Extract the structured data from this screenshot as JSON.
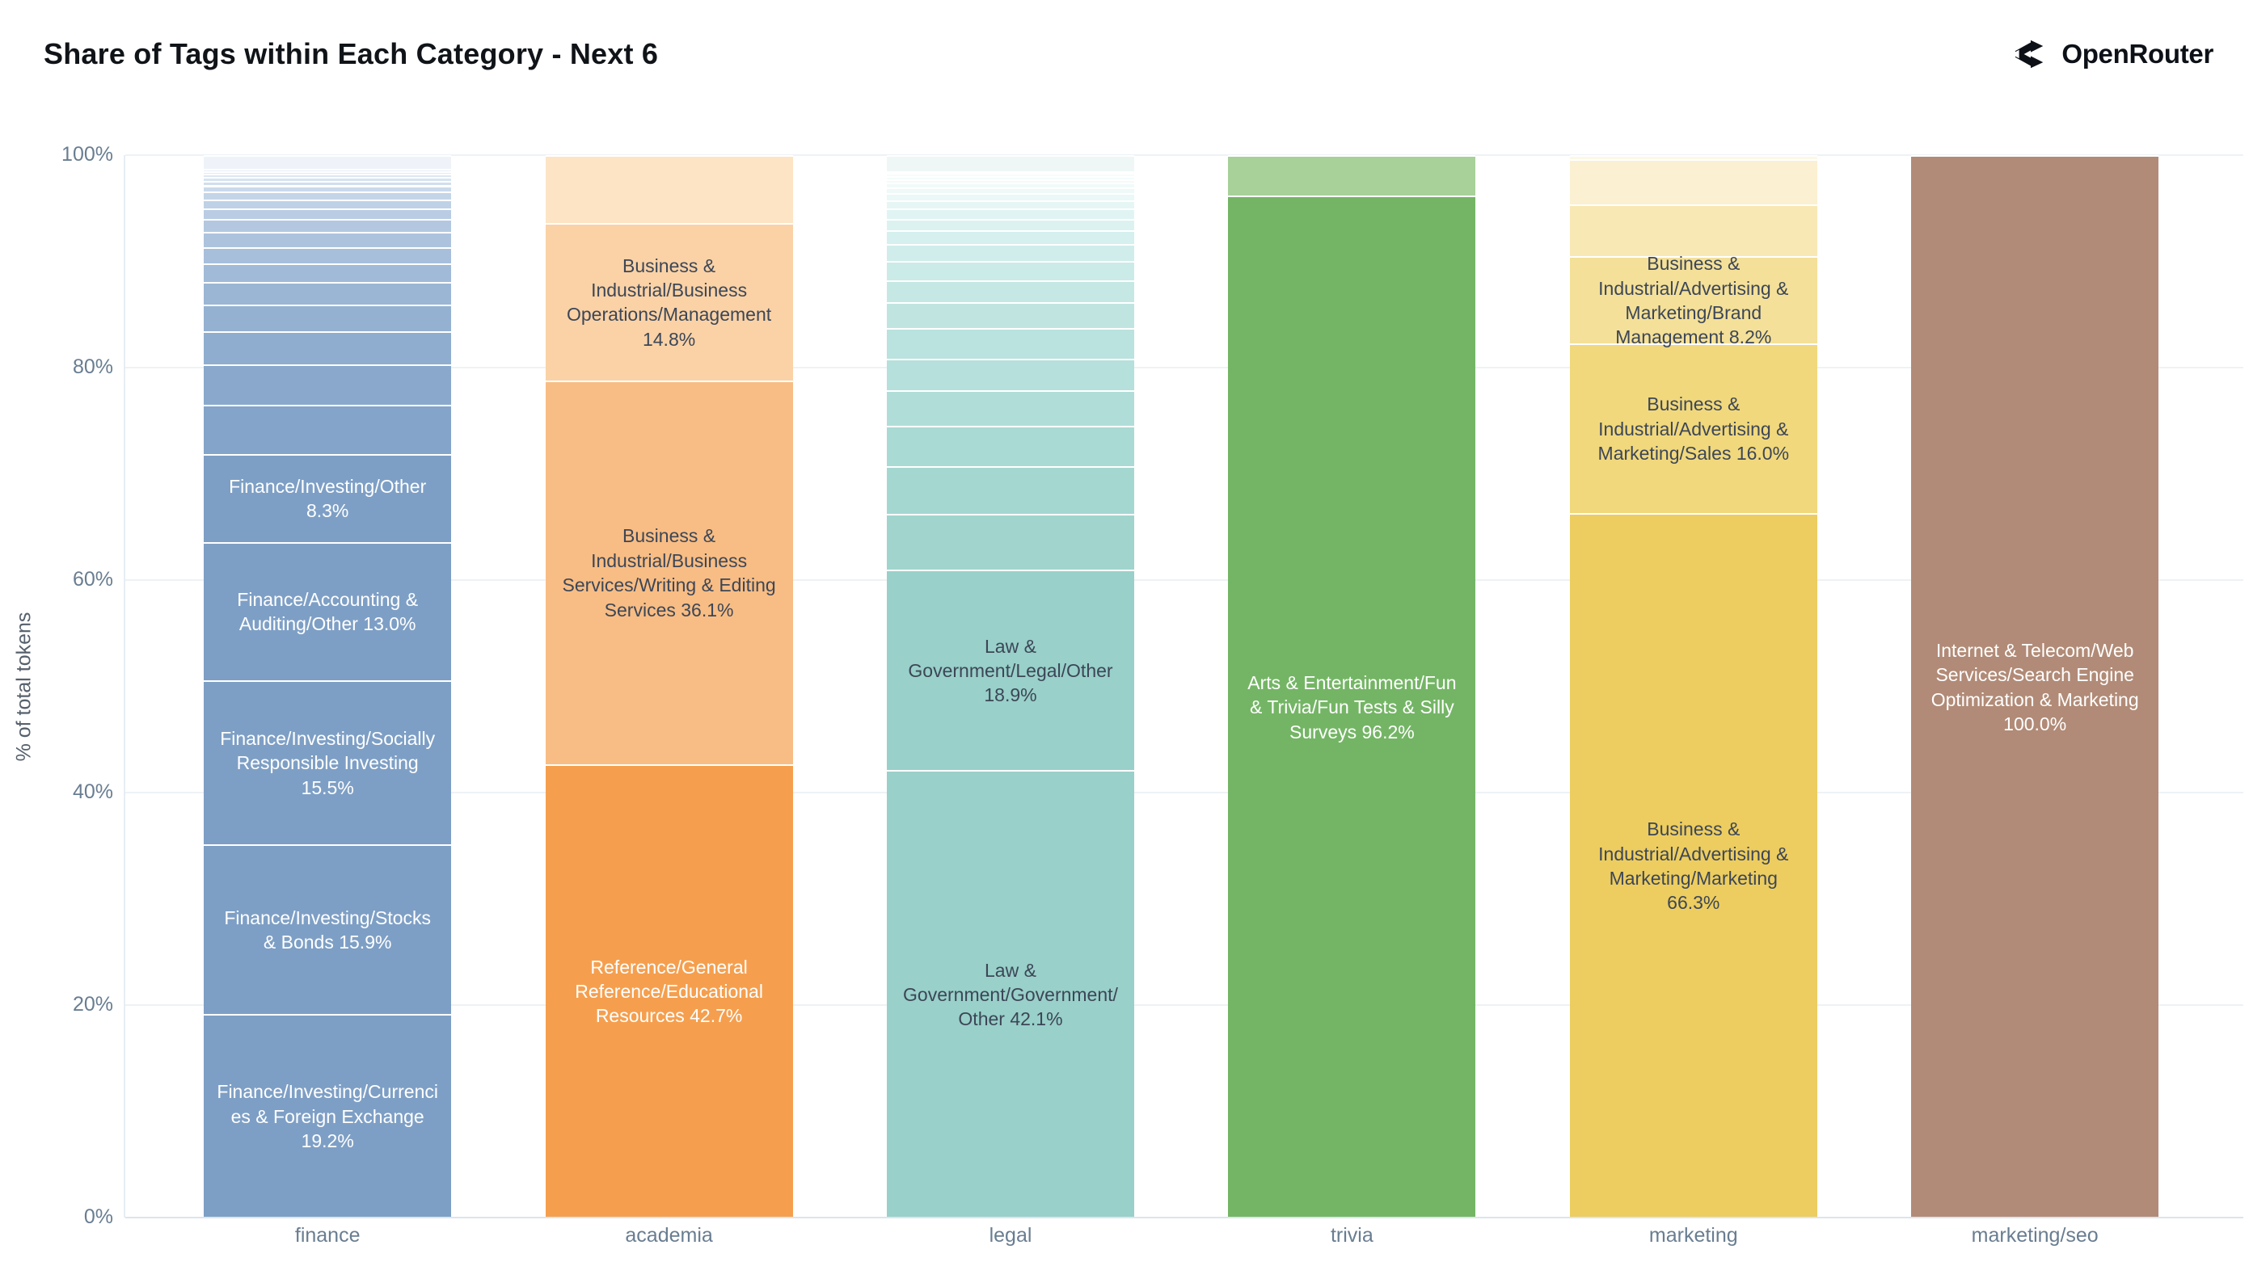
{
  "header": {
    "title": "Share of Tags within Each Category - Next 6",
    "logo_text": "OpenRouter"
  },
  "y_axis": {
    "label": "% of total tokens",
    "ticks": [
      {
        "label": "0%",
        "value": 0
      },
      {
        "label": "20%",
        "value": 20
      },
      {
        "label": "40%",
        "value": 40
      },
      {
        "label": "60%",
        "value": 60
      },
      {
        "label": "80%",
        "value": 80
      },
      {
        "label": "100%",
        "value": 100
      }
    ]
  },
  "colors": {
    "background": "#ffffff",
    "gridline": "#eef2f6",
    "axis_text": "#697d91",
    "title_text": "#101418",
    "dark_label_text": "#3c4657",
    "light_label_text": "#ffffff"
  },
  "chart_data": {
    "type": "bar",
    "stacked": true,
    "title": "Share of Tags within Each Category - Next 6",
    "xlabel": "",
    "ylabel": "% of total tokens",
    "ylim": [
      0,
      100
    ],
    "grid": true,
    "categories": [
      "finance",
      "academia",
      "legal",
      "trivia",
      "marketing",
      "marketing/seo"
    ],
    "bars": [
      {
        "category": "finance",
        "segments": [
          {
            "label": "Finance/Investing/Currencies & Foreign Exchange",
            "pct": 19.2,
            "color": "#7e9fc5",
            "text_color": "#ffffff"
          },
          {
            "label": "Finance/Investing/Stocks & Bonds",
            "pct": 15.9,
            "color": "#7e9fc5",
            "text_color": "#ffffff"
          },
          {
            "label": "Finance/Investing/Socially Responsible Investing",
            "pct": 15.5,
            "color": "#7e9fc5",
            "text_color": "#ffffff"
          },
          {
            "label": "Finance/Accounting & Auditing/Other",
            "pct": 13.0,
            "color": "#7e9fc5",
            "text_color": "#ffffff"
          },
          {
            "label": "Finance/Investing/Other",
            "pct": 8.3,
            "color": "#7e9fc5",
            "text_color": "#ffffff"
          },
          {
            "pct": 4.6,
            "color": "#84a4c9"
          },
          {
            "pct": 3.8,
            "color": "#89a8cc"
          },
          {
            "pct": 3.1,
            "color": "#8fadcf"
          },
          {
            "pct": 2.55,
            "color": "#95b1d2"
          },
          {
            "pct": 2.1,
            "color": "#9bb6d5"
          },
          {
            "pct": 1.75,
            "color": "#a1bad8"
          },
          {
            "pct": 1.55,
            "color": "#a7bfdb"
          },
          {
            "pct": 1.45,
            "color": "#adc3dd"
          },
          {
            "pct": 1.2,
            "color": "#b3c8e0"
          },
          {
            "pct": 1.0,
            "color": "#b9cce3"
          },
          {
            "pct": 0.85,
            "color": "#bfd1e6"
          },
          {
            "pct": 0.7,
            "color": "#c5d5e8"
          },
          {
            "pct": 0.6,
            "color": "#cbdaeb"
          },
          {
            "pct": 0.45,
            "color": "#d1deee"
          },
          {
            "pct": 0.35,
            "color": "#d7e3f0"
          },
          {
            "pct": 0.3,
            "color": "#dde7f3"
          },
          {
            "pct": 0.25,
            "color": "#e3ebf5"
          },
          {
            "pct": 0.2,
            "color": "#e9f0f8"
          },
          {
            "pct": 1.3,
            "color": "#eff3f9"
          }
        ]
      },
      {
        "category": "academia",
        "segments": [
          {
            "label": "Reference/General Reference/Educational Resources",
            "pct": 42.7,
            "color": "#f59f4e",
            "text_color": "#ffffff"
          },
          {
            "label": "Business & Industrial/Business Services/Writing & Editing Services",
            "pct": 36.1,
            "color": "#f8bd84",
            "text_color": "#3c4657"
          },
          {
            "label": "Business & Industrial/Business Operations/Management",
            "pct": 14.8,
            "color": "#fad2a6",
            "text_color": "#3c4657"
          },
          {
            "pct": 6.4,
            "color": "#fce4c4"
          }
        ]
      },
      {
        "category": "legal",
        "segments": [
          {
            "label": "Law & Government/Government/Other",
            "pct": 42.1,
            "color": "#99d0c9",
            "text_color": "#3c4657"
          },
          {
            "label": "Law & Government/Legal/Other",
            "pct": 18.9,
            "color": "#99d0c9",
            "text_color": "#3c4657"
          },
          {
            "pct": 5.2,
            "color": "#a0d4cd"
          },
          {
            "pct": 4.5,
            "color": "#a5d7d1"
          },
          {
            "pct": 3.85,
            "color": "#aadad4"
          },
          {
            "pct": 3.3,
            "color": "#b0ddd8"
          },
          {
            "pct": 3.0,
            "color": "#b5e0db"
          },
          {
            "pct": 2.85,
            "color": "#bae2de"
          },
          {
            "pct": 2.45,
            "color": "#c0e5e1"
          },
          {
            "pct": 2.1,
            "color": "#c5e8e5"
          },
          {
            "pct": 1.8,
            "color": "#cbebe8"
          },
          {
            "pct": 1.55,
            "color": "#d0edeb"
          },
          {
            "pct": 1.3,
            "color": "#d5f0ee"
          },
          {
            "pct": 1.1,
            "color": "#dbf2f1"
          },
          {
            "pct": 0.95,
            "color": "#e0f4f3"
          },
          {
            "pct": 0.8,
            "color": "#e5f6f5"
          },
          {
            "pct": 0.65,
            "color": "#eaf8f7"
          },
          {
            "pct": 0.55,
            "color": "#eef9f8"
          },
          {
            "pct": 0.45,
            "color": "#f1faf9"
          },
          {
            "pct": 0.35,
            "color": "#f3fbfa"
          },
          {
            "pct": 0.3,
            "color": "#f5fcfb"
          },
          {
            "pct": 0.25,
            "color": "#f7fcfb"
          },
          {
            "pct": 0.2,
            "color": "#f8fdfc"
          },
          {
            "pct": 1.5,
            "color": "#eff7f6"
          }
        ]
      },
      {
        "category": "trivia",
        "segments": [
          {
            "label": "Arts & Entertainment/Fun & Trivia/Fun Tests & Silly Surveys",
            "pct": 96.2,
            "color": "#74b565",
            "text_color": "#ffffff"
          },
          {
            "pct": 3.8,
            "color": "#a7d199"
          }
        ]
      },
      {
        "category": "marketing",
        "segments": [
          {
            "label": "Business & Industrial/Advertising & Marketing/Marketing",
            "pct": 66.3,
            "color": "#edcd5f",
            "text_color": "#3c4657"
          },
          {
            "label": "Business & Industrial/Advertising & Marketing/Sales",
            "pct": 16.0,
            "color": "#f1d87c",
            "text_color": "#3c4657"
          },
          {
            "label": "Business & Industrial/Advertising & Marketing/Brand Management",
            "pct": 8.2,
            "color": "#f4e098",
            "text_color": "#3c4657"
          },
          {
            "pct": 4.9,
            "color": "#f8e8b4"
          },
          {
            "pct": 4.2,
            "color": "#fbf0d2"
          },
          {
            "pct": 0.4,
            "color": "#fdf7e6"
          }
        ]
      },
      {
        "category": "marketing/seo",
        "segments": [
          {
            "label": "Internet & Telecom/Web Services/Search Engine Optimization & Marketing",
            "pct": 100.0,
            "color": "#b18b77",
            "text_color": "#ffffff"
          }
        ]
      }
    ]
  }
}
